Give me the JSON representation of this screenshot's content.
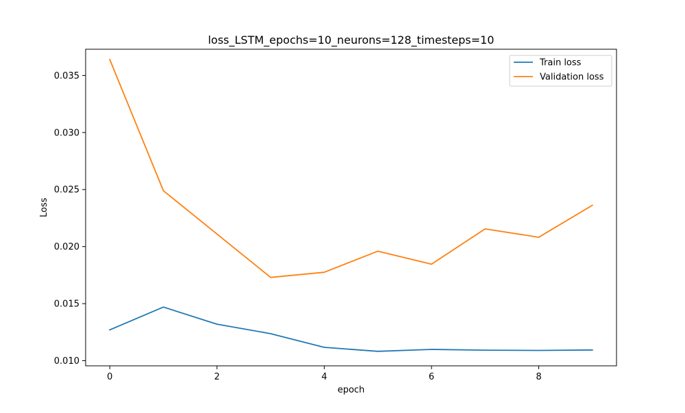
{
  "chart_data": {
    "type": "line",
    "title": "loss_LSTM_epochs=10_neurons=128_timesteps=10",
    "xlabel": "epoch",
    "ylabel": "Loss",
    "xlim": [
      -0.45,
      9.45
    ],
    "ylim": [
      0.00955,
      0.0373
    ],
    "x_ticks": [
      0,
      2,
      4,
      6,
      8
    ],
    "y_ticks": [
      0.01,
      0.015,
      0.02,
      0.025,
      0.03,
      0.035
    ],
    "grid": false,
    "legend_position": "top-right",
    "x": [
      0,
      1,
      2,
      3,
      4,
      5,
      6,
      7,
      8,
      9
    ],
    "series": [
      {
        "name": "Train loss",
        "color": "#1f77b4",
        "values": [
          0.0127,
          0.0147,
          0.0132,
          0.01237,
          0.01117,
          0.01082,
          0.01099,
          0.01092,
          0.0109,
          0.01094
        ]
      },
      {
        "name": "Validation loss",
        "color": "#ff7f0e",
        "values": [
          0.0364,
          0.0249,
          0.0211,
          0.0173,
          0.01775,
          0.0196,
          0.01846,
          0.02155,
          0.02082,
          0.02362
        ]
      }
    ]
  }
}
